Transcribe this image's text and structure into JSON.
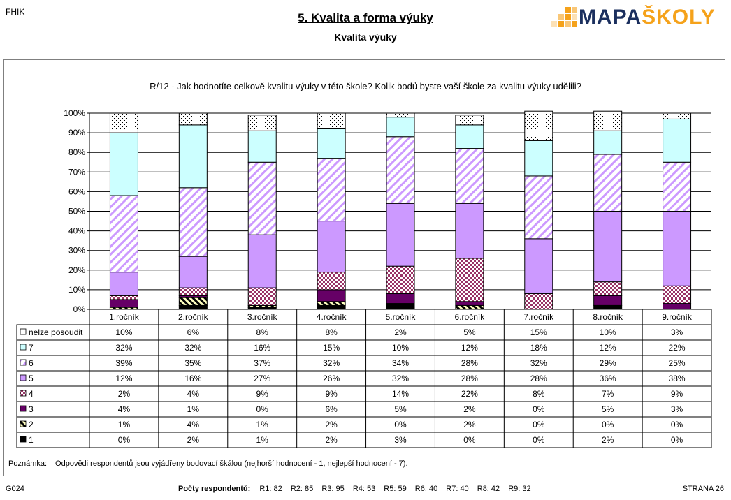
{
  "header": {
    "school_code": "FHIK",
    "title": "5. Kvalita a forma výuky",
    "subtitle": "Kvalita výuky",
    "logo_text_a": "MAPA",
    "logo_text_b": "ŠKOLY"
  },
  "question": "R/12 - Jak hodnotíte celkově kvalitu výuky v této škole? Kolik bodů byste vaší škole za kvalitu výuky udělili?",
  "note": {
    "label": "Poznámka:",
    "text": "Odpovědi respondentů jsou vyjádřeny bodovací škálou (nejhorší hodnocení - 1, nejlepší hodnocení - 7)."
  },
  "footer": {
    "left": "G024",
    "respondents_label": "Počty respondentů:",
    "respondents": [
      "R1: 82",
      "R2: 85",
      "R3: 95",
      "R4: 53",
      "R5: 59",
      "R6: 40",
      "R7: 40",
      "R8: 42",
      "R9: 32"
    ],
    "right": "STRANA 26"
  },
  "colors": {
    "s1": "#000000",
    "s2_pattern": "#000000",
    "s3": "#660066",
    "s4_pattern": "#993366",
    "s5": "#cc99ff",
    "s6_pattern": "#cc99ff",
    "s7": "#ccffff",
    "nelze_dots": "#000000",
    "grid": "#000000"
  },
  "chart_data": {
    "type": "bar",
    "stacked": true,
    "categories": [
      "1.ročník",
      "2.ročník",
      "3.ročník",
      "4.ročník",
      "5.ročník",
      "6.ročník",
      "7.ročník",
      "8.ročník",
      "9.ročník"
    ],
    "y_ticks": [
      "0%",
      "10%",
      "20%",
      "30%",
      "40%",
      "50%",
      "60%",
      "70%",
      "80%",
      "90%",
      "100%"
    ],
    "ylim": [
      0,
      100
    ],
    "legend_position": "table-left",
    "series": [
      {
        "name": "1",
        "values": [
          0,
          2,
          1,
          2,
          3,
          0,
          0,
          2,
          0
        ],
        "labels": [
          "0%",
          "2%",
          "1%",
          "2%",
          "3%",
          "0%",
          "0%",
          "2%",
          "0%"
        ]
      },
      {
        "name": "2",
        "values": [
          1,
          4,
          1,
          2,
          0,
          2,
          0,
          0,
          0
        ],
        "labels": [
          "1%",
          "4%",
          "1%",
          "2%",
          "0%",
          "2%",
          "0%",
          "0%",
          "0%"
        ]
      },
      {
        "name": "3",
        "values": [
          4,
          1,
          0,
          6,
          5,
          2,
          0,
          5,
          3
        ],
        "labels": [
          "4%",
          "1%",
          "0%",
          "6%",
          "5%",
          "2%",
          "0%",
          "5%",
          "3%"
        ]
      },
      {
        "name": "4",
        "values": [
          2,
          4,
          9,
          9,
          14,
          22,
          8,
          7,
          9
        ],
        "labels": [
          "2%",
          "4%",
          "9%",
          "9%",
          "14%",
          "22%",
          "8%",
          "7%",
          "9%"
        ]
      },
      {
        "name": "5",
        "values": [
          12,
          16,
          27,
          26,
          32,
          28,
          28,
          36,
          38
        ],
        "labels": [
          "12%",
          "16%",
          "27%",
          "26%",
          "32%",
          "28%",
          "28%",
          "36%",
          "38%"
        ]
      },
      {
        "name": "6",
        "values": [
          39,
          35,
          37,
          32,
          34,
          28,
          32,
          29,
          25
        ],
        "labels": [
          "39%",
          "35%",
          "37%",
          "32%",
          "34%",
          "28%",
          "32%",
          "29%",
          "25%"
        ]
      },
      {
        "name": "7",
        "values": [
          32,
          32,
          16,
          15,
          10,
          12,
          18,
          12,
          22
        ],
        "labels": [
          "32%",
          "32%",
          "16%",
          "15%",
          "10%",
          "12%",
          "18%",
          "12%",
          "22%"
        ]
      },
      {
        "name": "nelze posoudit",
        "values": [
          10,
          6,
          8,
          8,
          2,
          5,
          15,
          10,
          3
        ],
        "labels": [
          "10%",
          "6%",
          "8%",
          "8%",
          "2%",
          "5%",
          "15%",
          "10%",
          "3%"
        ]
      }
    ],
    "table_row_order": [
      "nelze posoudit",
      "7",
      "6",
      "5",
      "4",
      "3",
      "2",
      "1"
    ]
  }
}
